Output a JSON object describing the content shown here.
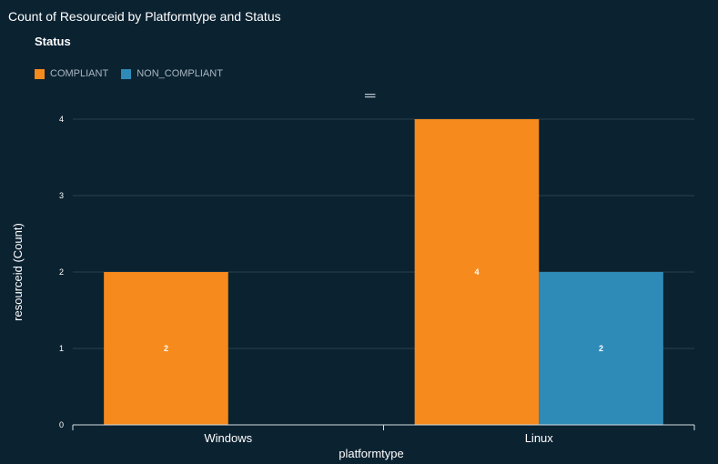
{
  "chart_data": {
    "type": "bar",
    "title": "Count of Resourceid by Platformtype and Status",
    "legend_title": "Status",
    "legend_position": "top-left",
    "xlabel": "platformtype",
    "ylabel": "resourceid (Count)",
    "categories": [
      "Windows",
      "Linux"
    ],
    "series": [
      {
        "name": "COMPLIANT",
        "color": "#f78a1d",
        "values": [
          2,
          4
        ]
      },
      {
        "name": "NON_COMPLIANT",
        "color": "#2e8bb8",
        "values": [
          null,
          2
        ]
      }
    ],
    "ylim": [
      0,
      4
    ],
    "yticks": [
      0,
      1,
      2,
      3,
      4
    ],
    "grid": true
  },
  "ui": {
    "drag_handle_icon": "drag-handle-icon"
  }
}
